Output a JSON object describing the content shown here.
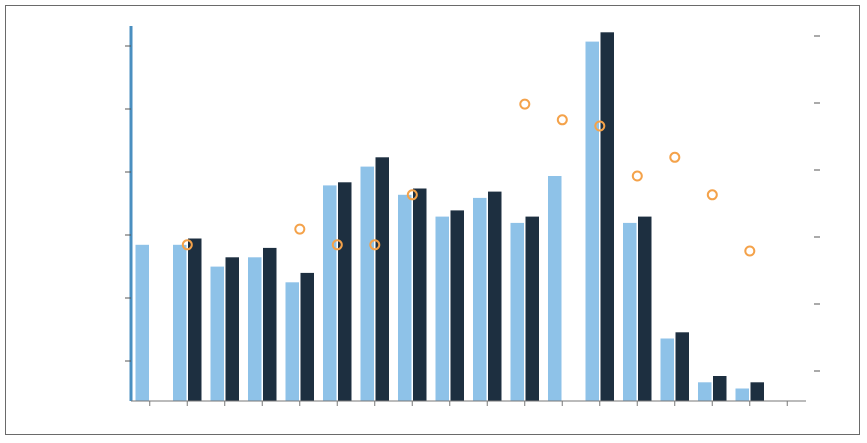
{
  "chart_data": {
    "type": "bar",
    "title": "",
    "xlabel": "",
    "ylabel": "",
    "ylim": [
      0,
      12
    ],
    "y2lim": [
      0,
      12
    ],
    "grid": false,
    "legend_position": "top-left",
    "legend_entries": [
      "",
      "",
      "",
      ""
    ],
    "categories": [
      "",
      "",
      "",
      "",
      "",
      "",
      "",
      "",
      "",
      "",
      "",
      "",
      "",
      "",
      "",
      "",
      "",
      ""
    ],
    "y_ticks": [
      "",
      "",
      "",
      "",
      "",
      ""
    ],
    "y2_ticks": [
      "",
      "",
      "",
      "",
      "",
      ""
    ],
    "series": [
      {
        "values": [
          5.0,
          5.0,
          4.3,
          4.6,
          3.8,
          6.9,
          7.5,
          6.6,
          5.9,
          6.5,
          5.7,
          7.2,
          11.5,
          5.7,
          2.0,
          0.6,
          0.4,
          0.0
        ],
        "color": "#8ec2e8"
      },
      {
        "values": [
          0.0,
          5.2,
          4.6,
          4.9,
          4.1,
          7.0,
          7.8,
          6.8,
          6.1,
          6.7,
          5.9,
          0.0,
          11.8,
          5.9,
          2.2,
          0.8,
          0.6,
          0.0
        ],
        "color": "#1d2f40"
      }
    ],
    "markers": [
      {
        "x_index": 1,
        "y": 5.0
      },
      {
        "x_index": 4,
        "y": 5.5
      },
      {
        "x_index": 5,
        "y": 5.0
      },
      {
        "x_index": 6,
        "y": 5.0
      },
      {
        "x_index": 7,
        "y": 6.6
      },
      {
        "x_index": 10,
        "y": 9.5
      },
      {
        "x_index": 11,
        "y": 9.0
      },
      {
        "x_index": 12,
        "y": 8.8
      },
      {
        "x_index": 13,
        "y": 7.2
      },
      {
        "x_index": 14,
        "y": 7.8
      },
      {
        "x_index": 15,
        "y": 6.6
      },
      {
        "x_index": 16,
        "y": 4.8
      }
    ],
    "colors": {
      "bar_light": "#8ec2e8",
      "bar_dark": "#1d2f40",
      "marker": "#f4a24a",
      "axis": "#4a8fc0"
    }
  }
}
